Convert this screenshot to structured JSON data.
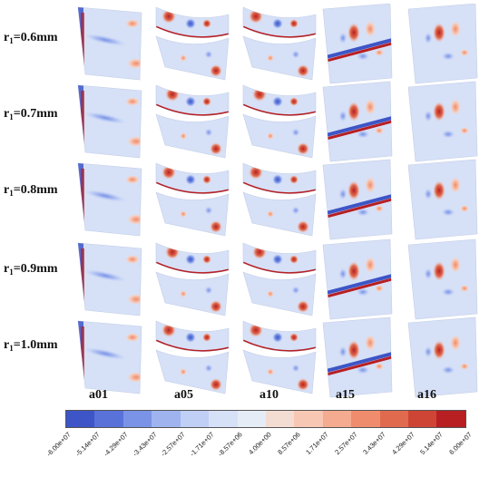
{
  "row_labels": [
    {
      "main": "r",
      "sub": "1",
      "value": "=0.6mm"
    },
    {
      "main": "r",
      "sub": "1",
      "value": "=0.7mm"
    },
    {
      "main": "r",
      "sub": "1",
      "value": "=0.8mm"
    },
    {
      "main": "r",
      "sub": "1",
      "value": "=0.9mm"
    },
    {
      "main": "r",
      "sub": "1",
      "value": "=1.0mm"
    }
  ],
  "column_labels": [
    "a01",
    "a05",
    "a10",
    "a15",
    "a16"
  ],
  "colorbar": {
    "colors": [
      "#3d55c7",
      "#5872d9",
      "#7a93e6",
      "#9fb4ef",
      "#c0cff5",
      "#d6e0f7",
      "#e6ecf6",
      "#f3dcd2",
      "#f7c7b4",
      "#f5ab8f",
      "#ef8c6d",
      "#e06a4e",
      "#cf4535",
      "#b71f22"
    ],
    "tick_labels": [
      "-6.00e+07",
      "-5.14e+07",
      "-4.29e+07",
      "-3.43e+07",
      "-2.57e+07",
      "-1.71e+07",
      "-8.57e+06",
      "4.00e+00",
      "8.57e+06",
      "1.71e+07",
      "2.57e+07",
      "3.43e+07",
      "4.29e+07",
      "5.14e+07",
      "6.00e+07"
    ]
  }
}
